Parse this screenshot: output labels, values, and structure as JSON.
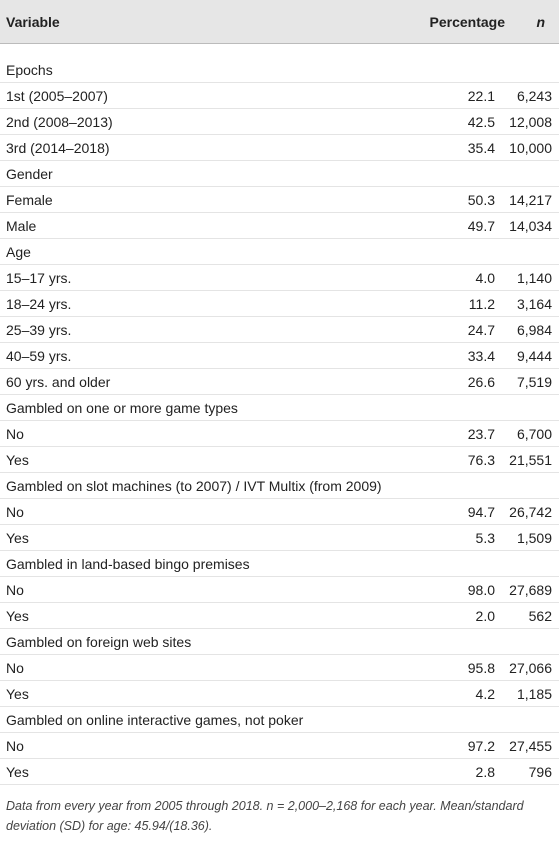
{
  "table": {
    "header": [
      "Variable",
      "Percentage",
      "n"
    ],
    "rows": [
      [
        "Epochs"
      ],
      [
        "1st (2005–2007)",
        "22.1",
        "6,243"
      ],
      [
        "2nd (2008–2013)",
        "42.5",
        "12,008"
      ],
      [
        "3rd (2014–2018)",
        "35.4",
        "10,000"
      ],
      [
        "Gender"
      ],
      [
        "Female",
        "50.3",
        "14,217"
      ],
      [
        "Male",
        "49.7",
        "14,034"
      ],
      [
        "Age"
      ],
      [
        "15–17 yrs.",
        "4.0",
        "1,140"
      ],
      [
        "18–24 yrs.",
        "11.2",
        "3,164"
      ],
      [
        "25–39 yrs.",
        "24.7",
        "6,984"
      ],
      [
        "40–59 yrs.",
        "33.4",
        "9,444"
      ],
      [
        "60 yrs. and older",
        "26.6",
        "7,519"
      ],
      [
        "Gambled on one or more game types"
      ],
      [
        "No",
        "23.7",
        "6,700"
      ],
      [
        "Yes",
        "76.3",
        "21,551"
      ],
      [
        "Gambled on slot machines (to 2007) / IVT Multix (from 2009)"
      ],
      [
        "No",
        "94.7",
        "26,742"
      ],
      [
        "Yes",
        "5.3",
        "1,509"
      ],
      [
        "Gambled in land-based bingo premises"
      ],
      [
        "No",
        "98.0",
        "27,689"
      ],
      [
        "Yes",
        "2.0",
        "562"
      ],
      [
        "Gambled on foreign web sites"
      ],
      [
        "No",
        "95.8",
        "27,066"
      ],
      [
        "Yes",
        "4.2",
        "1,185"
      ],
      [
        "Gambled on online interactive games, not poker"
      ],
      [
        "No",
        "97.2",
        "27,455"
      ],
      [
        "Yes",
        "2.8",
        "796"
      ]
    ],
    "footnote": "Data from every year from 2005 through 2018. n = 2,000–2,168 for each year. Mean/standard deviation (SD) for age: 45.94/(18.36)."
  }
}
